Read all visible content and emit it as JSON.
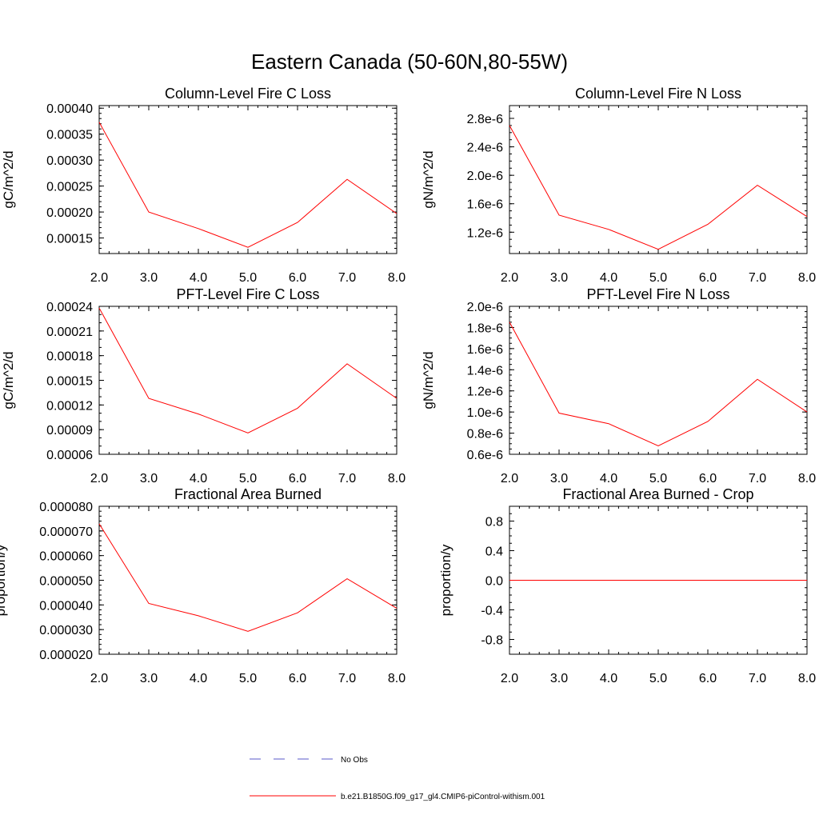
{
  "figure": {
    "title": "Eastern Canada (50-60N,80-55W)"
  },
  "legend": {
    "items": [
      {
        "label": "No Obs",
        "color": "#5a5ac8",
        "dash": "dashed"
      },
      {
        "label": "b.e21.B1850G.f09_g17_gl4.CMIP6-piControl-withism.001",
        "color": "#ff0000",
        "dash": "solid"
      }
    ]
  },
  "chart_data": [
    {
      "type": "line",
      "title": "Column-Level Fire C Loss",
      "xlabel": "",
      "ylabel": "gC/m^2/d",
      "x": [
        2,
        3,
        4,
        5,
        6,
        7,
        8
      ],
      "xlim": [
        2,
        8
      ],
      "ylim": [
        0.00012,
        0.000405
      ],
      "xticks": [
        "2.0",
        "3.0",
        "4.0",
        "5.0",
        "6.0",
        "7.0",
        "8.0"
      ],
      "yticks": [
        0.00015,
        0.0002,
        0.00025,
        0.0003,
        0.00035,
        0.0004
      ],
      "yticklabels": [
        "0.00015",
        "0.00020",
        "0.00025",
        "0.00030",
        "0.00035",
        "0.00040"
      ],
      "yminor": 1e-05,
      "series": [
        {
          "name": "b.e21.B1850G.f09_g17_gl4.CMIP6-piControl-withism.001",
          "color": "#ff0000",
          "values": [
            0.000373,
            0.0002,
            0.000168,
            0.000132,
            0.00018,
            0.000263,
            0.000197
          ]
        }
      ]
    },
    {
      "type": "line",
      "title": "Column-Level Fire N Loss",
      "xlabel": "",
      "ylabel": "gN/m^2/d",
      "x": [
        2,
        3,
        4,
        5,
        6,
        7,
        8
      ],
      "xlim": [
        2,
        8
      ],
      "ylim": [
        9e-07,
        2.98e-06
      ],
      "xticks": [
        "2.0",
        "3.0",
        "4.0",
        "5.0",
        "6.0",
        "7.0",
        "8.0"
      ],
      "yticks": [
        1.2e-06,
        1.6e-06,
        2e-06,
        2.4e-06,
        2.8e-06
      ],
      "yticklabels": [
        "1.2e-6",
        "1.6e-6",
        "2.0e-6",
        "2.4e-6",
        "2.8e-6"
      ],
      "yminor": 1e-07,
      "series": [
        {
          "name": "b.e21.B1850G.f09_g17_gl4.CMIP6-piControl-withism.001",
          "color": "#ff0000",
          "values": [
            2.7e-06,
            1.44e-06,
            1.24e-06,
            9.6e-07,
            1.31e-06,
            1.86e-06,
            1.42e-06
          ]
        }
      ]
    },
    {
      "type": "line",
      "title": "PFT-Level Fire C Loss",
      "xlabel": "",
      "ylabel": "gC/m^2/d",
      "x": [
        2,
        3,
        4,
        5,
        6,
        7,
        8
      ],
      "xlim": [
        2,
        8
      ],
      "ylim": [
        6e-05,
        0.00024
      ],
      "xticks": [
        "2.0",
        "3.0",
        "4.0",
        "5.0",
        "6.0",
        "7.0",
        "8.0"
      ],
      "yticks": [
        6e-05,
        9e-05,
        0.00012,
        0.00015,
        0.00018,
        0.00021,
        0.00024
      ],
      "yticklabels": [
        "0.00006",
        "0.00009",
        "0.00012",
        "0.00015",
        "0.00018",
        "0.00021",
        "0.00024"
      ],
      "yminor": 1e-05,
      "series": [
        {
          "name": "b.e21.B1850G.f09_g17_gl4.CMIP6-piControl-withism.001",
          "color": "#ff0000",
          "values": [
            0.000238,
            0.000128,
            0.000109,
            8.6e-05,
            0.000116,
            0.00017,
            0.000128
          ]
        }
      ]
    },
    {
      "type": "line",
      "title": "PFT-Level Fire N Loss",
      "xlabel": "",
      "ylabel": "gN/m^2/d",
      "x": [
        2,
        3,
        4,
        5,
        6,
        7,
        8
      ],
      "xlim": [
        2,
        8
      ],
      "ylim": [
        6e-07,
        2e-06
      ],
      "xticks": [
        "2.0",
        "3.0",
        "4.0",
        "5.0",
        "6.0",
        "7.0",
        "8.0"
      ],
      "yticks": [
        6e-07,
        8e-07,
        1e-06,
        1.2e-06,
        1.4e-06,
        1.6e-06,
        1.8e-06,
        2e-06
      ],
      "yticklabels": [
        "0.6e-6",
        "0.8e-6",
        "1.0e-6",
        "1.2e-6",
        "1.4e-6",
        "1.6e-6",
        "1.8e-6",
        "2.0e-6"
      ],
      "yminor": 5e-08,
      "series": [
        {
          "name": "b.e21.B1850G.f09_g17_gl4.CMIP6-piControl-withism.001",
          "color": "#ff0000",
          "values": [
            1.85e-06,
            9.9e-07,
            8.9e-07,
            6.8e-07,
            9.1e-07,
            1.31e-06,
            1e-06
          ]
        }
      ]
    },
    {
      "type": "line",
      "title": "Fractional Area Burned",
      "xlabel": "",
      "ylabel": "proportion/y",
      "x": [
        2,
        3,
        4,
        5,
        6,
        7,
        8
      ],
      "xlim": [
        2,
        8
      ],
      "ylim": [
        2e-05,
        8e-05
      ],
      "xticks": [
        "2.0",
        "3.0",
        "4.0",
        "5.0",
        "6.0",
        "7.0",
        "8.0"
      ],
      "yticks": [
        2e-05,
        3e-05,
        4e-05,
        5e-05,
        6e-05,
        7e-05,
        8e-05
      ],
      "yticklabels": [
        "0.000020",
        "0.000030",
        "0.000040",
        "0.000050",
        "0.000060",
        "0.000070",
        "0.000080"
      ],
      "yminor": 2e-06,
      "series": [
        {
          "name": "b.e21.B1850G.f09_g17_gl4.CMIP6-piControl-withism.001",
          "color": "#ff0000",
          "values": [
            7.29e-05,
            4.06e-05,
            3.56e-05,
            2.93e-05,
            3.68e-05,
            5.06e-05,
            3.86e-05
          ]
        }
      ]
    },
    {
      "type": "line",
      "title": "Fractional Area Burned - Crop",
      "xlabel": "",
      "ylabel": "proportion/y",
      "x": [
        2,
        3,
        4,
        5,
        6,
        7,
        8
      ],
      "xlim": [
        2,
        8
      ],
      "ylim": [
        -1.0,
        1.0
      ],
      "xticks": [
        "2.0",
        "3.0",
        "4.0",
        "5.0",
        "6.0",
        "7.0",
        "8.0"
      ],
      "yticks": [
        -0.8,
        -0.4,
        0.0,
        0.4,
        0.8
      ],
      "yticklabels": [
        "-0.8",
        "-0.4",
        "0.0",
        "0.4",
        "0.8"
      ],
      "yminor": 0.1,
      "series": [
        {
          "name": "b.e21.B1850G.f09_g17_gl4.CMIP6-piControl-withism.001",
          "color": "#ff0000",
          "values": [
            0,
            0,
            0,
            0,
            0,
            0,
            0
          ]
        }
      ]
    }
  ]
}
